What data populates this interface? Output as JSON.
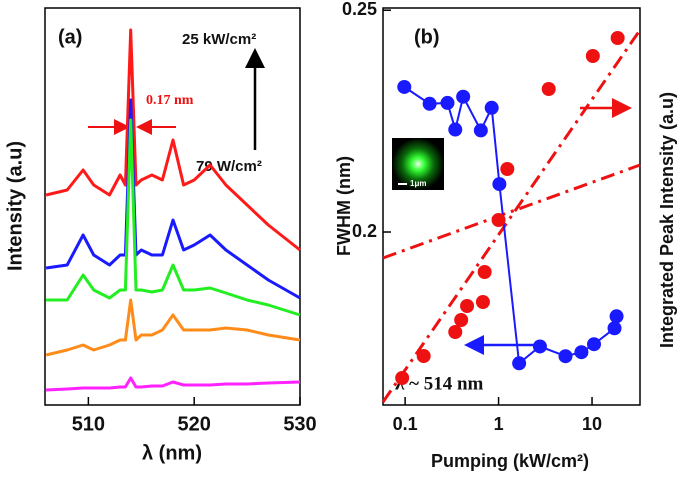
{
  "chart_data": [
    {
      "type": "line",
      "x_label": "λ (nm)",
      "y_label": "Intensity (a.u)",
      "annotations": [
        "(a)",
        "25 kW/cm²",
        "79 W/cm²",
        "0.17 nm"
      ],
      "x": [
        506,
        508,
        509.5,
        510.5,
        512,
        513,
        513.5,
        514,
        514.5,
        515,
        516,
        517,
        518,
        519,
        520,
        521.5,
        523,
        525,
        527,
        530
      ],
      "series": [
        {
          "color": "#ff1a1a",
          "values": [
            210,
            215,
            235,
            220,
            210,
            230,
            220,
            375,
            220,
            225,
            230,
            225,
            265,
            220,
            225,
            240,
            220,
            200,
            180,
            155
          ]
        },
        {
          "color": "#1a1aff",
          "values": [
            137,
            140,
            170,
            150,
            140,
            150,
            150,
            305,
            150,
            155,
            150,
            150,
            185,
            155,
            160,
            170,
            155,
            140,
            125,
            107
          ]
        },
        {
          "color": "#22ee22",
          "values": [
            105,
            105,
            130,
            115,
            107,
            115,
            115,
            285,
            115,
            115,
            113,
            115,
            140,
            115,
            115,
            117,
            112,
            105,
            100,
            90
          ]
        },
        {
          "color": "#ff8c1a",
          "values": [
            50,
            55,
            60,
            55,
            60,
            65,
            65,
            105,
            65,
            70,
            70,
            75,
            90,
            75,
            75,
            75,
            77,
            75,
            70,
            65
          ]
        },
        {
          "color": "#ff22ff",
          "values": [
            15,
            16,
            17,
            17,
            17,
            18,
            18,
            27,
            18,
            18,
            19,
            19,
            23,
            20,
            20,
            20,
            21,
            21,
            22,
            23
          ]
        }
      ],
      "xlim": [
        505.9,
        530
      ],
      "xticks": [
        510,
        520,
        530
      ],
      "ylim": [
        0,
        397
      ]
    },
    {
      "type": "scatter",
      "x_label": "Pumping (kW/cm²)",
      "y_label": "FWHM (nm)",
      "y2_label": "Integrated Peak Intensity (a.u)",
      "annotations": [
        "(b)",
        "λ ~ 514 nm",
        "1μm"
      ],
      "x_log": true,
      "xlim": [
        0.058,
        32.6
      ],
      "xticks": [
        0.1,
        1,
        10
      ],
      "ylim": [
        0.161,
        0.2505
      ],
      "yticks": [
        0.2,
        0.25
      ],
      "y2lim": [
        0,
        397
      ],
      "series": [
        {
          "color": "#1a1aff",
          "axis": "y",
          "connect": true,
          "x": [
            0.098,
            0.183,
            0.284,
            0.344,
            0.418,
            0.646,
            0.844,
            1.02,
            1.66,
            2.77,
            5.2,
            7.7,
            10.5,
            17.4,
            18.3
          ],
          "values": [
            0.2327,
            0.2289,
            0.2291,
            0.2231,
            0.2305,
            0.2229,
            0.228,
            0.2108,
            0.1704,
            0.1742,
            0.172,
            0.1729,
            0.1747,
            0.1783,
            0.181
          ]
        },
        {
          "color": "#ee1111",
          "axis": "y2",
          "connect": false,
          "x": [
            0.093,
            0.158,
            0.344,
            0.398,
            0.46,
            0.68,
            0.71,
            1.0,
            1.24,
            3.44,
            10.2,
            18.8
          ],
          "values": [
            27,
            49,
            73,
            85,
            99,
            103,
            133,
            185,
            236,
            316,
            349,
            367
          ]
        }
      ]
    }
  ]
}
